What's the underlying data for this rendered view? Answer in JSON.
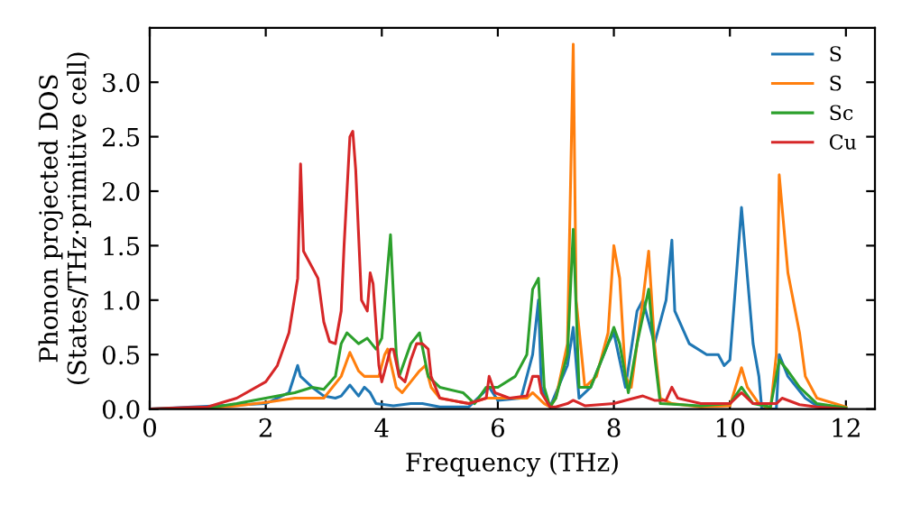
{
  "chart_data": {
    "type": "line",
    "xlabel": "Frequency (THz)",
    "ylabel": "Phonon projected DOS\n(States/THz·primitive cell)",
    "xlim": [
      0,
      12.5
    ],
    "ylim": [
      0,
      3.5
    ],
    "xticks": [
      0,
      2,
      4,
      6,
      8,
      10,
      12
    ],
    "yticks": [
      {
        "value": 0,
        "label": "0.0"
      },
      {
        "value": 0.5,
        "label": "0.5"
      },
      {
        "value": 1,
        "label": "1.0"
      },
      {
        "value": 1.5,
        "label": "1.5"
      },
      {
        "value": 2,
        "label": "2.0"
      },
      {
        "value": 2.5,
        "label": "2.5"
      },
      {
        "value": 3,
        "label": "3.0"
      }
    ],
    "legend": "top right",
    "grid": false,
    "series": [
      {
        "name": "S",
        "color": "#1f77b4",
        "x": [
          0,
          2,
          2.4,
          2.55,
          2.6,
          2.8,
          3.0,
          3.2,
          3.3,
          3.45,
          3.6,
          3.7,
          3.8,
          3.9,
          4.2,
          4.5,
          4.7,
          5,
          5.5,
          5.85,
          6.0,
          6.4,
          6.6,
          6.7,
          6.75,
          6.9,
          7.2,
          7.3,
          7.4,
          7.6,
          7.9,
          8.0,
          8.2,
          8.4,
          8.5,
          8.6,
          8.7,
          8.9,
          9.0,
          9.05,
          9.3,
          9.6,
          9.8,
          9.9,
          10.0,
          10.2,
          10.4,
          10.5,
          10.55,
          10.8,
          10.85,
          11.0,
          11.3,
          11.5,
          12
        ],
        "values": [
          0,
          0.05,
          0.15,
          0.4,
          0.3,
          0.2,
          0.12,
          0.1,
          0.12,
          0.22,
          0.12,
          0.2,
          0.15,
          0.05,
          0.03,
          0.05,
          0.05,
          0.02,
          0.02,
          0.2,
          0.08,
          0.1,
          0.5,
          1.0,
          0.2,
          0.02,
          0.4,
          0.75,
          0.1,
          0.2,
          0.6,
          0.7,
          0.2,
          0.9,
          1.0,
          0.8,
          0.6,
          1.0,
          1.55,
          0.9,
          0.6,
          0.5,
          0.5,
          0.4,
          0.45,
          1.85,
          0.6,
          0.3,
          0,
          0,
          0.5,
          0.3,
          0.1,
          0.03,
          0.01
        ]
      },
      {
        "name": "S",
        "color": "#ff7f0e",
        "x": [
          0,
          0.5,
          1,
          1.5,
          2,
          2.5,
          3.0,
          3.3,
          3.45,
          3.6,
          3.7,
          3.8,
          3.95,
          4.05,
          4.1,
          4.25,
          4.35,
          4.5,
          4.65,
          4.75,
          4.85,
          5.0,
          5.5,
          5.8,
          6.2,
          6.5,
          6.6,
          6.8,
          6.9,
          7.0,
          7.2,
          7.3,
          7.35,
          7.5,
          7.7,
          7.9,
          8.0,
          8.1,
          8.2,
          8.3,
          8.5,
          8.6,
          8.7,
          8.8,
          9,
          9.5,
          10,
          10.2,
          10.3,
          10.5,
          10.7,
          10.8,
          10.85,
          11.0,
          11.2,
          11.3,
          11.5,
          12
        ],
        "values": [
          0,
          0,
          0.01,
          0.03,
          0.06,
          0.1,
          0.1,
          0.3,
          0.52,
          0.35,
          0.3,
          0.3,
          0.3,
          0.5,
          0.55,
          0.2,
          0.15,
          0.25,
          0.35,
          0.4,
          0.2,
          0.1,
          0.05,
          0.1,
          0.1,
          0.1,
          0.15,
          0.05,
          0.02,
          0.1,
          0.6,
          3.35,
          1.0,
          0.2,
          0.3,
          0.7,
          1.5,
          1.2,
          0.3,
          0.2,
          1.0,
          1.45,
          0.6,
          0.1,
          0.05,
          0.02,
          0.03,
          0.38,
          0.2,
          0.05,
          0,
          0.5,
          2.15,
          1.25,
          0.7,
          0.3,
          0.1,
          0.02
        ]
      },
      {
        "name": "Sc",
        "color": "#2ca02c",
        "x": [
          0,
          1,
          1.5,
          2,
          2.5,
          2.8,
          3.0,
          3.2,
          3.3,
          3.4,
          3.6,
          3.75,
          3.9,
          4.0,
          4.1,
          4.15,
          4.25,
          4.3,
          4.5,
          4.65,
          4.8,
          5.0,
          5.4,
          5.6,
          5.8,
          6.0,
          6.3,
          6.5,
          6.6,
          6.7,
          6.8,
          6.9,
          7.0,
          7.2,
          7.3,
          7.4,
          7.6,
          7.9,
          8.0,
          8.1,
          8.25,
          8.4,
          8.6,
          8.7,
          8.8,
          9.5,
          10,
          10.2,
          10.4,
          10.7,
          10.85,
          11.0,
          11.2,
          11.5,
          12
        ],
        "values": [
          0,
          0.01,
          0.05,
          0.1,
          0.15,
          0.2,
          0.18,
          0.3,
          0.6,
          0.7,
          0.6,
          0.65,
          0.55,
          0.65,
          1.3,
          1.6,
          0.5,
          0.3,
          0.6,
          0.7,
          0.3,
          0.2,
          0.15,
          0.05,
          0.2,
          0.2,
          0.3,
          0.5,
          1.1,
          1.2,
          0.2,
          0.02,
          0.1,
          0.5,
          1.65,
          0.2,
          0.2,
          0.6,
          0.75,
          0.6,
          0.15,
          0.6,
          1.1,
          0.5,
          0.05,
          0.03,
          0.05,
          0.2,
          0.05,
          0.02,
          0.45,
          0.35,
          0.2,
          0.05,
          0.01
        ]
      },
      {
        "name": "Cu",
        "color": "#d62728",
        "x": [
          0,
          0.5,
          1,
          1.5,
          2,
          2.2,
          2.4,
          2.55,
          2.6,
          2.65,
          2.8,
          2.9,
          3.0,
          3.1,
          3.2,
          3.3,
          3.35,
          3.45,
          3.5,
          3.55,
          3.65,
          3.75,
          3.8,
          3.85,
          3.95,
          4.0,
          4.05,
          4.15,
          4.2,
          4.3,
          4.4,
          4.5,
          4.6,
          4.7,
          4.8,
          4.85,
          5.0,
          5.5,
          5.8,
          5.85,
          5.95,
          6.2,
          6.5,
          6.6,
          6.7,
          6.75,
          6.9,
          7.0,
          7.2,
          7.3,
          7.5,
          8,
          8.2,
          8.5,
          8.7,
          8.9,
          9.0,
          9.1,
          9.5,
          10,
          10.2,
          10.4,
          10.8,
          10.9,
          11.2,
          11.5,
          12
        ],
        "values": [
          0,
          0.01,
          0.02,
          0.1,
          0.25,
          0.4,
          0.7,
          1.2,
          2.25,
          1.45,
          1.3,
          1.2,
          0.8,
          0.62,
          0.6,
          0.9,
          1.5,
          2.5,
          2.55,
          2.2,
          1.0,
          0.9,
          1.25,
          1.15,
          0.4,
          0.25,
          0.35,
          0.55,
          0.55,
          0.3,
          0.25,
          0.45,
          0.6,
          0.6,
          0.55,
          0.3,
          0.1,
          0.05,
          0.1,
          0.3,
          0.15,
          0.1,
          0.12,
          0.3,
          0.3,
          0.15,
          0.02,
          0.02,
          0.05,
          0.08,
          0.03,
          0.05,
          0.08,
          0.12,
          0.08,
          0.08,
          0.2,
          0.1,
          0.05,
          0.05,
          0.15,
          0.05,
          0.05,
          0.1,
          0.04,
          0.02,
          0
        ]
      }
    ]
  }
}
